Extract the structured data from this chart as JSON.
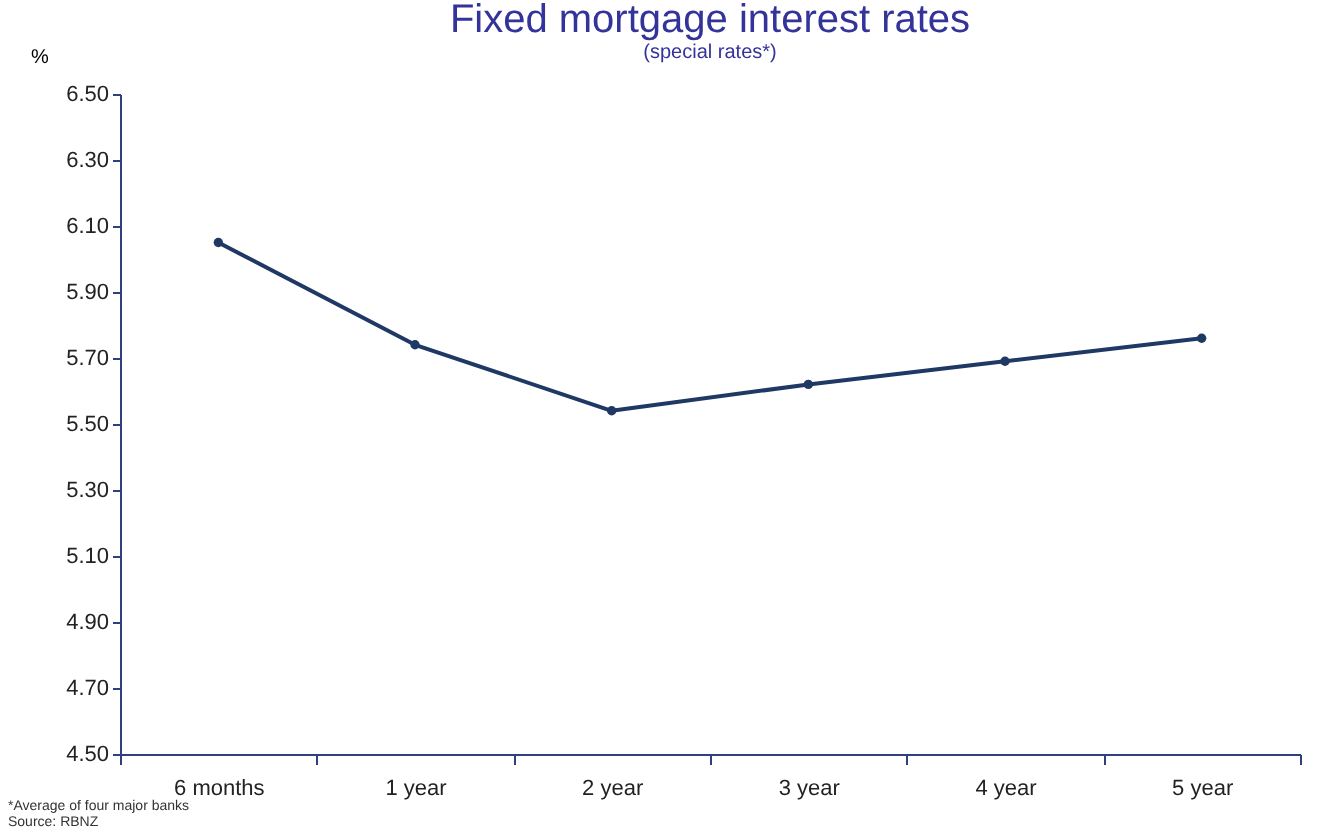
{
  "chart_data": {
    "type": "line",
    "title": "Fixed mortgage interest rates",
    "subtitle": "(special rates*)",
    "ylabel": "%",
    "categories": [
      "6 months",
      "1 year",
      "2 year",
      "3 year",
      "4 year",
      "5 year"
    ],
    "series": [
      {
        "color": "#1f3864",
        "values": [
          6.05,
          5.74,
          5.54,
          5.62,
          5.69,
          5.76
        ]
      }
    ],
    "ylim": [
      4.5,
      6.5
    ],
    "yticks": [
      {
        "value": 4.5,
        "label": "4.50"
      },
      {
        "value": 4.7,
        "label": "4.70"
      },
      {
        "value": 4.9,
        "label": "4.90"
      },
      {
        "value": 5.1,
        "label": "5.10"
      },
      {
        "value": 5.3,
        "label": "5.30"
      },
      {
        "value": 5.5,
        "label": "5.50"
      },
      {
        "value": 5.7,
        "label": "5.70"
      },
      {
        "value": 5.9,
        "label": "5.90"
      },
      {
        "value": 6.1,
        "label": "6.10"
      },
      {
        "value": 6.3,
        "label": "6.30"
      },
      {
        "value": 6.5,
        "label": "6.50"
      }
    ],
    "grid": false,
    "marker": "circle",
    "line_style": "solid",
    "annotations": [
      "*Average of four major banks",
      "Source: RBNZ"
    ]
  }
}
